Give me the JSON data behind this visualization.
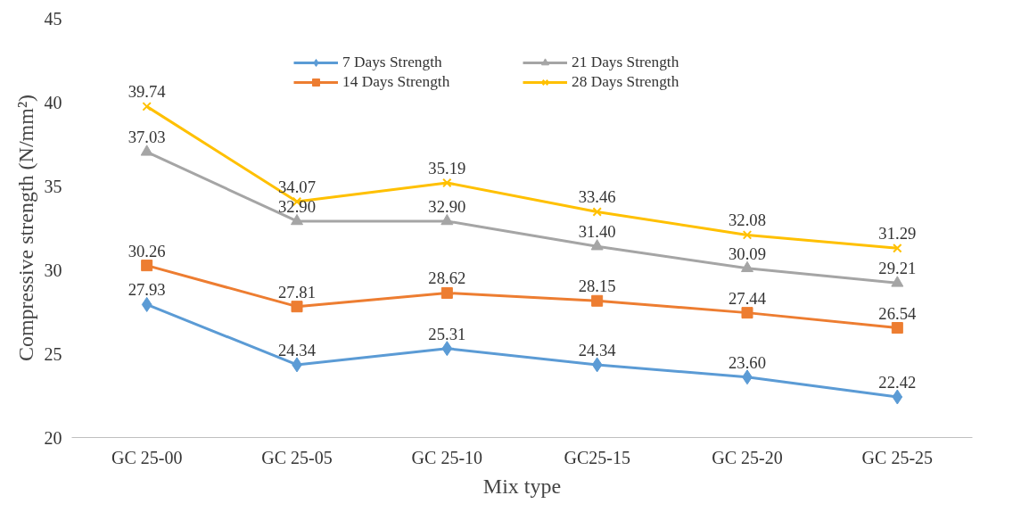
{
  "chart_data": {
    "type": "line",
    "xlabel": "Mix type",
    "ylabel": "Compressive strength (N/mm²)",
    "categories": [
      "GC 25-00",
      "GC 25-05",
      "GC 25-10",
      "GC25-15",
      "GC 25-20",
      "GC 25-25"
    ],
    "series": [
      {
        "name": "7 Days Strength",
        "color": "#5b9bd5",
        "marker": "diamond",
        "values": [
          27.93,
          24.34,
          25.31,
          24.34,
          23.6,
          22.42
        ],
        "value_labels": [
          "27.93",
          "24.34",
          "25.31",
          "24.34",
          "23.60",
          "22.42"
        ]
      },
      {
        "name": "14 Days Strength",
        "color": "#ed7d31",
        "marker": "square",
        "values": [
          30.26,
          27.81,
          28.62,
          28.15,
          27.44,
          26.54
        ],
        "value_labels": [
          "30.26",
          "27.81",
          "28.62",
          "28.15",
          "27.44",
          "26.54"
        ]
      },
      {
        "name": "21 Days Strength",
        "color": "#a5a5a5",
        "marker": "triangle",
        "values": [
          37.03,
          32.9,
          32.9,
          31.4,
          30.09,
          29.21
        ],
        "value_labels": [
          "37.03",
          "32.90",
          "32.90",
          "31.40",
          "30.09",
          "29.21"
        ]
      },
      {
        "name": "28 Days Strength",
        "color": "#ffc000",
        "marker": "cross",
        "values": [
          39.74,
          34.07,
          35.19,
          33.46,
          32.08,
          31.29
        ],
        "value_labels": [
          "39.74",
          "34.07",
          "35.19",
          "33.46",
          "32.08",
          "31.29"
        ]
      }
    ],
    "ylim": [
      20,
      45
    ],
    "yticks": [
      20,
      25,
      30,
      35,
      40,
      45
    ],
    "grid": false,
    "legend": "top",
    "line_style": "solid"
  }
}
